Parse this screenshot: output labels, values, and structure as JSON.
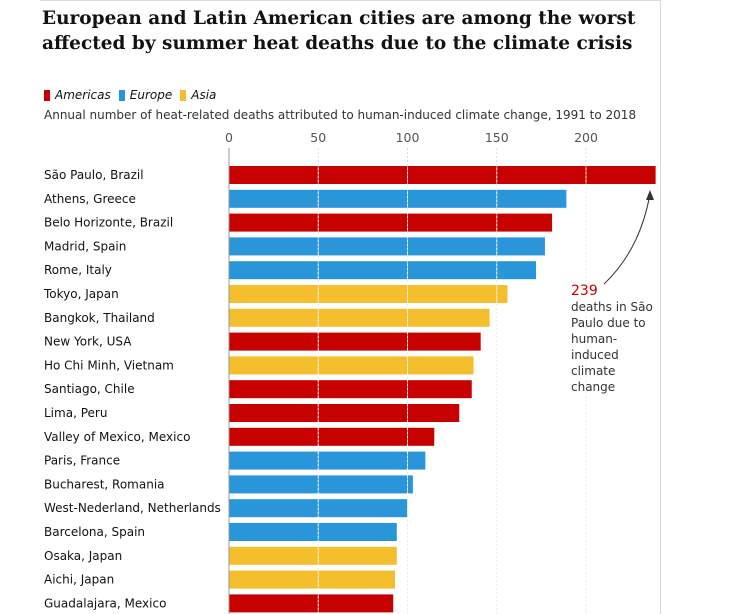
{
  "title": "European and Latin American cities are among the worst affected by summer heat deaths due to the climate crisis",
  "subtitle": "Annual number of heat-related deaths attributed to human-induced climate change, 1991 to 2018",
  "legend": [
    {
      "label": "Americas",
      "color": "#c70000"
    },
    {
      "label": "Europe",
      "color": "#2896d8"
    },
    {
      "label": "Asia",
      "color": "#f5be2c"
    }
  ],
  "annotation": {
    "value": "239",
    "text": "deaths in São Paulo due to human-induced climate change"
  },
  "chart_data": {
    "type": "bar",
    "orientation": "horizontal",
    "xlim": [
      0,
      239
    ],
    "ticks": [
      0,
      50,
      100,
      150,
      200
    ],
    "grid": true,
    "categories": [
      "São Paulo, Brazil",
      "Athens, Greece",
      "Belo Horizonte, Brazil",
      "Madrid, Spain",
      "Rome, Italy",
      "Tokyo, Japan",
      "Bangkok, Thailand",
      "New York, USA",
      "Ho Chi Minh, Vietnam",
      "Santiago, Chile",
      "Lima, Peru",
      "Valley of Mexico, Mexico",
      "Paris, France",
      "Bucharest, Romania",
      "West-Nederland, Netherlands",
      "Barcelona, Spain",
      "Osaka, Japan",
      "Aichi, Japan",
      "Guadalajara, Mexico"
    ],
    "values": [
      239,
      189,
      181,
      177,
      172,
      156,
      146,
      141,
      137,
      136,
      129,
      115,
      110,
      103,
      100,
      94,
      94,
      93,
      92
    ],
    "regions": [
      "Americas",
      "Europe",
      "Americas",
      "Europe",
      "Europe",
      "Asia",
      "Asia",
      "Americas",
      "Asia",
      "Americas",
      "Americas",
      "Americas",
      "Europe",
      "Europe",
      "Europe",
      "Europe",
      "Asia",
      "Asia",
      "Americas"
    ],
    "colors": {
      "Americas": "#c70000",
      "Europe": "#2896d8",
      "Asia": "#f5be2c"
    }
  }
}
